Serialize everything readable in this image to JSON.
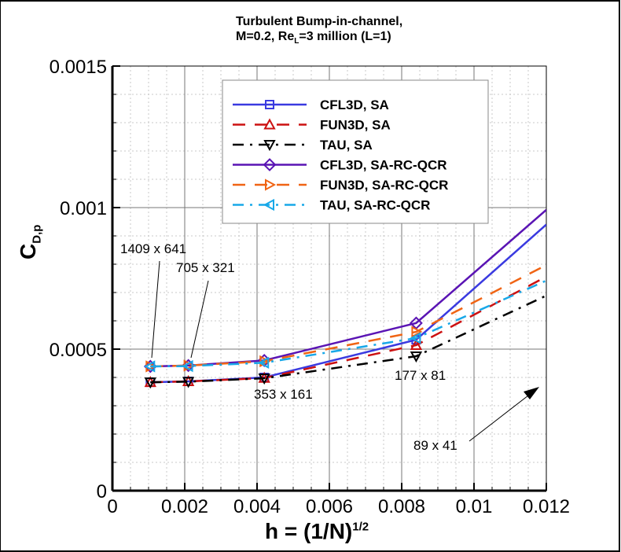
{
  "title": {
    "line1": "Turbulent Bump-in-channel,",
    "line2_pre": "M=0.2, Re",
    "line2_sub": "L",
    "line2_post": "=3 million (L=1)"
  },
  "axes": {
    "xlabel_main": "h = (1/N)",
    "xlabel_sup": "1/2",
    "ylabel_main": "C",
    "ylabel_sub": "D,p",
    "xticks": [
      "0",
      "0.002",
      "0.004",
      "0.006",
      "0.008",
      "0.01",
      "0.012"
    ],
    "yticks": [
      "0",
      "0.0005",
      "0.001",
      "0.0015"
    ]
  },
  "legend": [
    {
      "label": "CFL3D, SA",
      "color": "#3a3ae0",
      "marker": "square",
      "dash": "solid"
    },
    {
      "label": "FUN3D, SA",
      "color": "#cc1111",
      "marker": "triangle-up",
      "dash": "dashed"
    },
    {
      "label": "TAU, SA",
      "color": "#000000",
      "marker": "triangle-down",
      "dash": "dashdot"
    },
    {
      "label": "CFL3D, SA-RC-QCR",
      "color": "#5a14b4",
      "marker": "diamond",
      "dash": "solid"
    },
    {
      "label": "FUN3D, SA-RC-QCR",
      "color": "#f06414",
      "marker": "triangle-right",
      "dash": "dashed"
    },
    {
      "label": "TAU, SA-RC-QCR",
      "color": "#18a8e8",
      "marker": "triangle-left",
      "dash": "dashdot"
    }
  ],
  "annotations": [
    {
      "text": "1409 x 641"
    },
    {
      "text": "705 x 321"
    },
    {
      "text": "353 x 161"
    },
    {
      "text": "177 x 81"
    },
    {
      "text": "89 x 41"
    }
  ],
  "chart_data": {
    "type": "line",
    "title": "Turbulent Bump-in-channel, M=0.2, Re_L=3 million (L=1)",
    "xlabel": "h = (1/N)^(1/2)",
    "ylabel": "C_D,p",
    "xlim": [
      0,
      0.012
    ],
    "ylim": [
      0,
      0.0015
    ],
    "grid": true,
    "legend_position": "upper center",
    "x": [
      0.00105,
      0.0021,
      0.0042,
      0.0084,
      0.012
    ],
    "x_note": "last x value is where lines exit the plot (toward 89 x 41 grid, h≈0.0165)",
    "grid_labels": [
      "1409 x 641",
      "705 x 321",
      "353 x 161",
      "177 x 81",
      "89 x 41"
    ],
    "series": [
      {
        "name": "CFL3D, SA",
        "values": [
          0.000383,
          0.000386,
          0.0004,
          0.000533,
          0.00094
        ]
      },
      {
        "name": "FUN3D, SA",
        "values": [
          0.000383,
          0.000386,
          0.000398,
          0.000514,
          0.000756
        ]
      },
      {
        "name": "TAU, SA",
        "values": [
          0.000383,
          0.000385,
          0.000397,
          0.000475,
          0.000689
        ]
      },
      {
        "name": "CFL3D, SA-RC-QCR",
        "values": [
          0.000439,
          0.000442,
          0.00046,
          0.000592,
          0.000992
        ]
      },
      {
        "name": "FUN3D, SA-RC-QCR",
        "values": [
          0.000439,
          0.000442,
          0.000457,
          0.000561,
          0.000797
        ]
      },
      {
        "name": "TAU, SA-RC-QCR",
        "values": [
          0.000439,
          0.00044,
          0.000452,
          0.000539,
          0.000742
        ]
      }
    ]
  }
}
